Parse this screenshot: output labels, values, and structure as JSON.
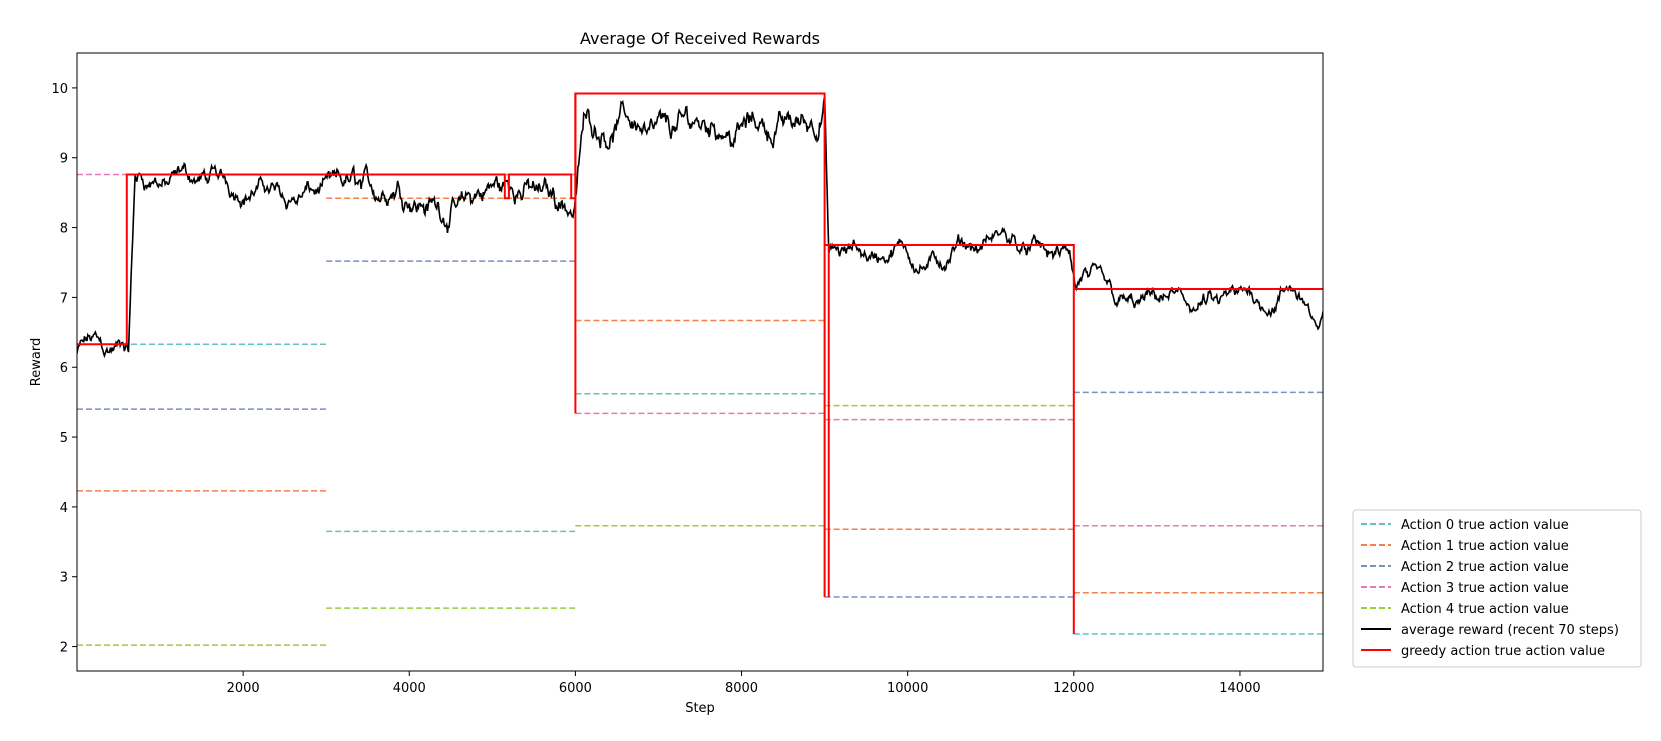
{
  "chart_data": {
    "type": "line",
    "title": "Average Of Received Rewards",
    "xlabel": "Step",
    "ylabel": "Reward",
    "xlim": [
      0,
      15000
    ],
    "ylim": [
      1.65,
      10.5
    ],
    "x_ticks": [
      2000,
      4000,
      6000,
      8000,
      10000,
      12000,
      14000
    ],
    "y_ticks": [
      2,
      3,
      4,
      5,
      6,
      7,
      8,
      9,
      10
    ],
    "grid": false,
    "legend_placement": "outside-lower-right",
    "colors": {
      "action0": "#66c2c2",
      "action1": "#f4804a",
      "action2": "#7b8fc4",
      "action3": "#e57ab8",
      "action4": "#9ccc3c",
      "average": "#000000",
      "greedy": "#ff0000"
    },
    "legend": [
      {
        "key": "action0",
        "label": "Action 0 true action value",
        "style": "dashed"
      },
      {
        "key": "action1",
        "label": "Action 1 true action value",
        "style": "dashed"
      },
      {
        "key": "action2",
        "label": "Action 2 true action value",
        "style": "dashed"
      },
      {
        "key": "action3",
        "label": "Action 3 true action value",
        "style": "dashed"
      },
      {
        "key": "action4",
        "label": "Action 4 true action value",
        "style": "dashed"
      },
      {
        "key": "average",
        "label": "average reward (recent 70 steps)",
        "style": "solid"
      },
      {
        "key": "greedy",
        "label": "greedy action true action value",
        "style": "solid"
      }
    ],
    "true_action_values": {
      "segments": [
        [
          0,
          3000
        ],
        [
          3000,
          6000
        ],
        [
          6000,
          9000
        ],
        [
          9000,
          12000
        ],
        [
          12000,
          15000
        ]
      ],
      "series": [
        {
          "key": "action0",
          "values": [
            6.33,
            3.65,
            5.62,
            7.75,
            2.18
          ]
        },
        {
          "key": "action1",
          "values": [
            4.23,
            8.42,
            6.67,
            3.68,
            2.77
          ]
        },
        {
          "key": "action2",
          "values": [
            5.4,
            7.52,
            9.92,
            2.71,
            5.64
          ]
        },
        {
          "key": "action3",
          "values": [
            8.76,
            8.76,
            5.34,
            5.25,
            3.73
          ]
        },
        {
          "key": "action4",
          "values": [
            2.02,
            2.55,
            3.73,
            5.45,
            7.12
          ]
        }
      ]
    },
    "greedy_series": {
      "x": [
        0,
        600,
        600,
        3000,
        3000,
        5150,
        5150,
        5200,
        5200,
        5950,
        5950,
        6000,
        6000,
        9000,
        9000,
        9000,
        9000,
        12000,
        12000,
        12000,
        12000,
        15000
      ],
      "y": [
        6.33,
        6.33,
        8.76,
        8.76,
        8.76,
        8.76,
        8.42,
        8.42,
        8.76,
        8.76,
        8.42,
        8.42,
        9.92,
        9.92,
        2.71,
        2.71,
        7.75,
        7.75,
        2.18,
        2.18,
        7.12,
        7.12
      ],
      "extra_drops": [
        [
          6000,
          9.92,
          5.34
        ],
        [
          9050,
          7.75,
          2.71
        ]
      ]
    },
    "average_series": {
      "anchors_x": [
        0,
        200,
        400,
        550,
        620,
        700,
        1000,
        1500,
        2000,
        2500,
        2980,
        3100,
        3500,
        4000,
        4500,
        5000,
        5500,
        5800,
        5980,
        6100,
        6500,
        7000,
        7300,
        7600,
        8000,
        8500,
        8900,
        9000,
        9050,
        9100,
        9300,
        10000,
        10500,
        11000,
        11500,
        11950,
        12020,
        12100,
        12500,
        13000,
        13500,
        14000,
        14500,
        14800,
        14950,
        15000
      ],
      "anchors_y": [
        6.2,
        6.35,
        6.35,
        6.3,
        6.12,
        8.6,
        8.55,
        8.5,
        8.55,
        8.6,
        8.65,
        8.5,
        8.6,
        8.75,
        8.45,
        8.55,
        8.5,
        8.5,
        8.4,
        9.7,
        9.75,
        9.7,
        9.6,
        9.75,
        9.72,
        9.65,
        9.75,
        9.95,
        7.7,
        7.65,
        7.55,
        7.5,
        7.45,
        7.55,
        7.65,
        7.5,
        6.9,
        7.0,
        6.95,
        6.85,
        6.8,
        6.75,
        6.95,
        6.9,
        6.3,
        6.8
      ],
      "noise_amplitude": 0.18
    }
  }
}
